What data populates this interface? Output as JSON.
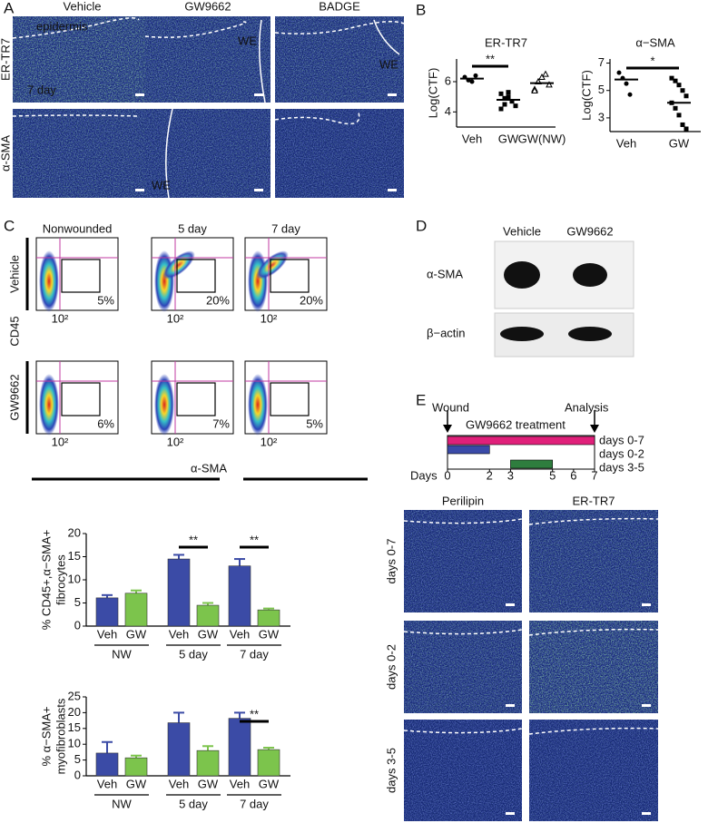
{
  "panel_labels": [
    "A",
    "B",
    "C",
    "D",
    "E"
  ],
  "panel_A": {
    "columns": [
      "Vehicle",
      "GW9662",
      "BADGE"
    ],
    "rows": [
      "ER-TR7",
      "α-SMA"
    ],
    "epidermis": "epidermis",
    "day": "7 day",
    "wound_edge": "WE"
  },
  "panel_C": {
    "columns": [
      "Nonwounded",
      "5 day",
      "7 day"
    ],
    "rows": [
      "Vehicle",
      "GW9662"
    ],
    "y_axis": "CD45",
    "x_axis": "α-SMA",
    "tick": "10²",
    "percentages": [
      [
        "5%",
        "20%",
        "20%"
      ],
      [
        "6%",
        "7%",
        "5%"
      ]
    ]
  },
  "panel_D": {
    "columns": [
      "Vehicle",
      "GW9662"
    ],
    "rows": [
      "α-SMA",
      "β−actin"
    ]
  },
  "panel_E": {
    "events": [
      "Wound",
      "Analysis"
    ],
    "treatment": "GW9662 treatment",
    "timeline": {
      "xlabel": "Days",
      "xlim": [
        0,
        7
      ],
      "xticks": [
        0,
        2,
        3,
        5,
        6,
        7
      ],
      "bars": [
        {
          "label": "days 0-7",
          "start": 0,
          "end": 7,
          "color": "#e0207a"
        },
        {
          "label": "days 0-2",
          "start": 0,
          "end": 2,
          "color": "#3a4aa8"
        },
        {
          "label": "days 3-5",
          "start": 3,
          "end": 5,
          "color": "#2e7d3e"
        }
      ]
    },
    "image_columns": [
      "Perilipin",
      "ER-TR7"
    ]
  },
  "chart_data": [
    {
      "type": "dot",
      "title": "ER-TR7",
      "ylabel": "Log(CTF)",
      "categories": [
        "Veh",
        "GW",
        "GW(NW)"
      ],
      "values": [
        [
          6.3,
          6.1,
          6.0,
          6.4
        ],
        [
          5.2,
          4.9,
          5.0,
          4.7,
          4.4,
          4.2,
          4.5,
          5.3
        ],
        [
          5.5,
          6.0,
          6.3,
          6.5,
          5.8,
          5.4,
          6.0
        ]
      ],
      "means": [
        6.2,
        4.8,
        5.9
      ],
      "markers": [
        "circle",
        "square",
        "triangle"
      ],
      "ylim": [
        3,
        7.5
      ],
      "yticks": [
        4,
        6
      ],
      "significance": [
        {
          "label": "**",
          "from": 0,
          "to": 1
        }
      ]
    },
    {
      "type": "dot",
      "title": "α−SMA",
      "ylabel": "Log(CTF)",
      "categories": [
        "Veh",
        "GW"
      ],
      "values": [
        [
          6.3,
          5.9,
          5.5,
          4.7
        ],
        [
          5.9,
          5.7,
          5.4,
          5.0,
          4.6,
          4.1,
          3.7,
          3.2,
          2.5,
          2.2
        ]
      ],
      "means": [
        5.8,
        4.1
      ],
      "markers": [
        "circle",
        "square"
      ],
      "ylim": [
        2,
        7.3
      ],
      "yticks": [
        3,
        5,
        7
      ],
      "significance": [
        {
          "label": "*",
          "from": 0,
          "to": 1
        }
      ]
    },
    {
      "type": "bar",
      "ylabel": [
        "% CD45+,α−SMA+",
        "fibrocytes"
      ],
      "categories": [
        "Veh",
        "GW",
        "Veh",
        "GW",
        "Veh",
        "GW"
      ],
      "groups": [
        "NW",
        "5 day",
        "7 day"
      ],
      "values": [
        6.1,
        7.1,
        14.5,
        4.5,
        13.0,
        3.5
      ],
      "errors": [
        0.6,
        0.6,
        0.9,
        0.5,
        1.5,
        0.3
      ],
      "colors": [
        "#3b4ba6",
        "#7cc44c"
      ],
      "ylim": [
        0,
        20
      ],
      "yticks": [
        0,
        5,
        10,
        15,
        20
      ],
      "significance": [
        {
          "label": "**",
          "from": 2,
          "to": 3
        },
        {
          "label": "**",
          "from": 4,
          "to": 5
        }
      ]
    },
    {
      "type": "bar",
      "ylabel": [
        "% α−SMA+",
        "myofibroblasts"
      ],
      "categories": [
        "Veh",
        "GW",
        "Veh",
        "GW",
        "Veh",
        "GW"
      ],
      "groups": [
        "NW",
        "5 day",
        "7 day"
      ],
      "values": [
        7.2,
        5.7,
        16.8,
        8.0,
        18.2,
        8.3
      ],
      "errors": [
        3.5,
        0.7,
        3.2,
        1.4,
        1.8,
        0.6
      ],
      "colors": [
        "#3b4ba6",
        "#7cc44c"
      ],
      "ylim": [
        0,
        25
      ],
      "yticks": [
        0,
        5,
        10,
        15,
        20,
        25
      ],
      "significance": [
        {
          "label": "**",
          "from": 4,
          "to": 5
        }
      ]
    }
  ]
}
